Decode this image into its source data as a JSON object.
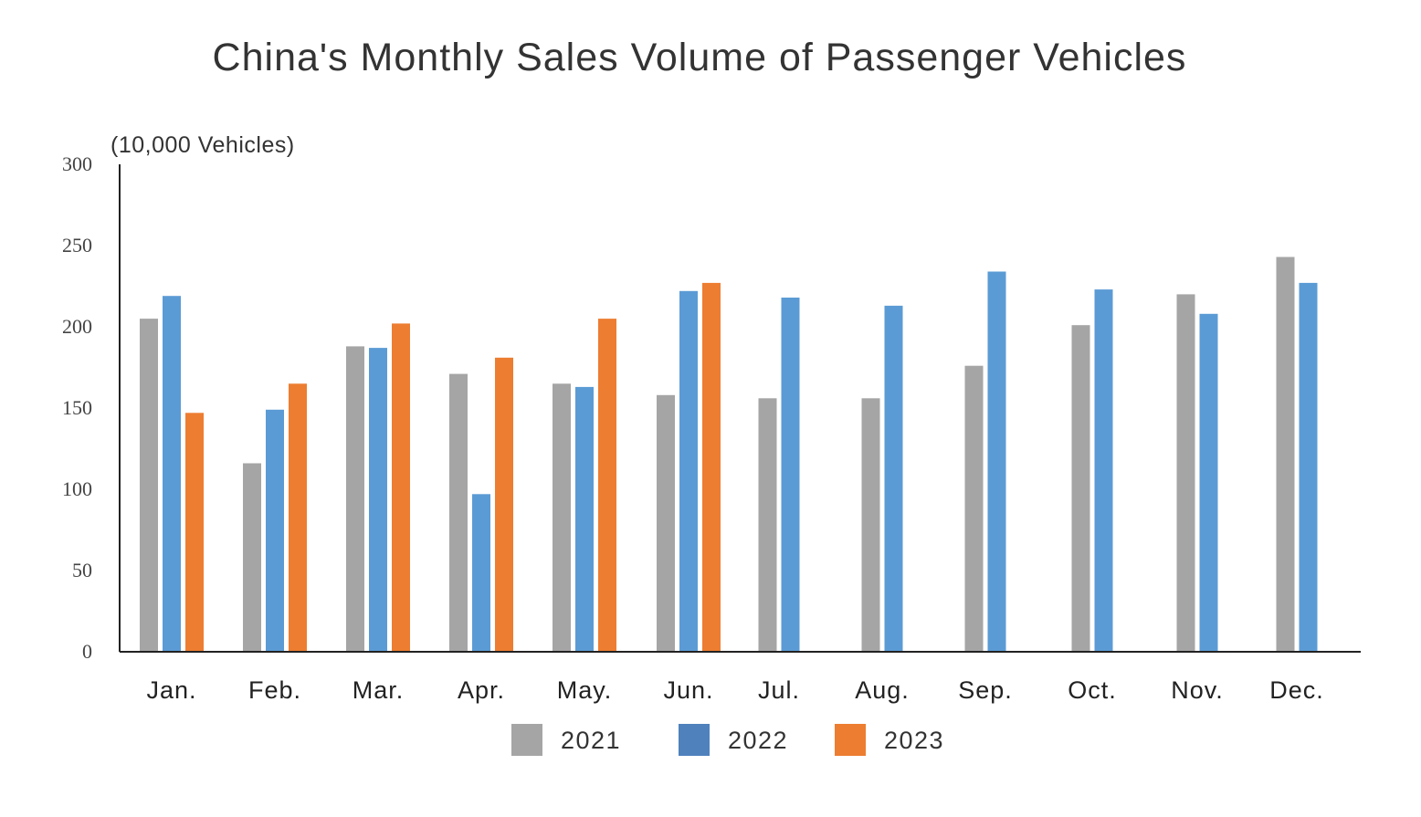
{
  "chart_data": {
    "type": "bar",
    "title": "China's Monthly Sales Volume of Passenger Vehicles",
    "ylabel": "(10,000 Vehicles)",
    "xlabel": "",
    "ylim": [
      0,
      300
    ],
    "yticks": [
      0,
      50,
      100,
      150,
      200,
      250,
      300
    ],
    "categories": [
      "Jan.",
      "Feb.",
      "Mar.",
      "Apr.",
      "May.",
      "Jun.",
      "Jul.",
      "Aug.",
      "Sep.",
      "Oct.",
      "Nov.",
      "Dec."
    ],
    "series": [
      {
        "name": "2021",
        "color": "#a5a5a5",
        "values": [
          205,
          116,
          188,
          171,
          165,
          158,
          156,
          156,
          176,
          201,
          220,
          243
        ]
      },
      {
        "name": "2022",
        "color": "#5b9bd5",
        "values": [
          219,
          149,
          187,
          97,
          163,
          222,
          218,
          213,
          234,
          223,
          208,
          227
        ]
      },
      {
        "name": "2023",
        "color": "#ed7d31",
        "values": [
          147,
          165,
          202,
          181,
          205,
          227,
          null,
          null,
          null,
          null,
          null,
          null
        ]
      }
    ],
    "legend_position": "bottom-center",
    "legend_colors": [
      "#a5a5a5",
      "#4f81bd",
      "#ed7d31"
    ],
    "grid": false
  }
}
